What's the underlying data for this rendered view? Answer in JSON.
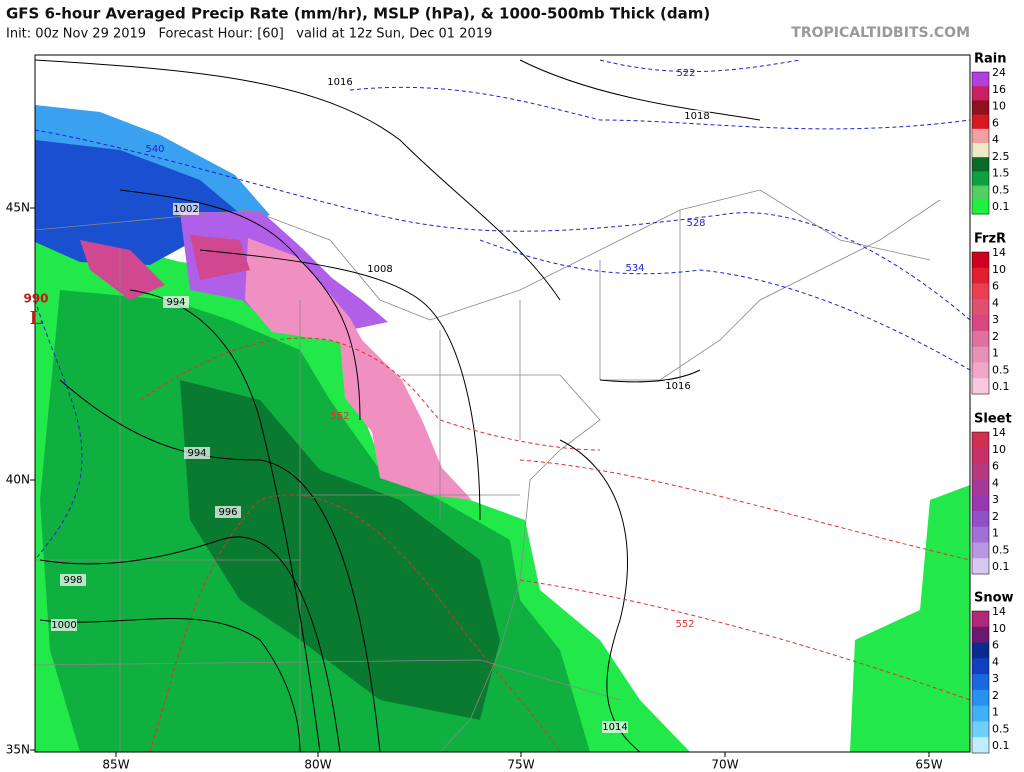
{
  "header": {
    "title": "GFS 6-hour Averaged Precip Rate (mm/hr), MSLP (hPa), & 1000-500mb Thick (dam)",
    "subtitle": "Init: 00z Nov 29 2019   Forecast Hour: [60]   valid at 12z Sun, Dec 01 2019",
    "site": "TROPICALTIDBITS.COM"
  },
  "map": {
    "lat_labels": [
      "45N",
      "40N",
      "35N"
    ],
    "lon_labels": [
      "85W",
      "80W",
      "75W",
      "70W",
      "65W"
    ],
    "low": {
      "pressure": "990",
      "letter": "L"
    },
    "pressure_labels": [
      "1016",
      "1018",
      "1002",
      "1008",
      "994",
      "994",
      "996",
      "998",
      "1000",
      "1016",
      "1014"
    ],
    "thickness_labels": [
      "522",
      "528",
      "534",
      "540",
      "552",
      "552"
    ]
  },
  "legend": [
    {
      "title": "Rain",
      "levels": [
        "24",
        "16",
        "10",
        "6",
        "4",
        "2.5",
        "1.5",
        "0.5",
        "0.1"
      ]
    },
    {
      "title": "FrzR",
      "levels": [
        "14",
        "10",
        "6",
        "4",
        "3",
        "2",
        "1",
        "0.5",
        "0.1"
      ]
    },
    {
      "title": "Sleet",
      "levels": [
        "14",
        "10",
        "6",
        "4",
        "3",
        "2",
        "1",
        "0.5",
        "0.1"
      ]
    },
    {
      "title": "Snow",
      "levels": [
        "14",
        "10",
        "6",
        "4",
        "3",
        "2",
        "1",
        "0.5",
        "0.1"
      ]
    }
  ]
}
